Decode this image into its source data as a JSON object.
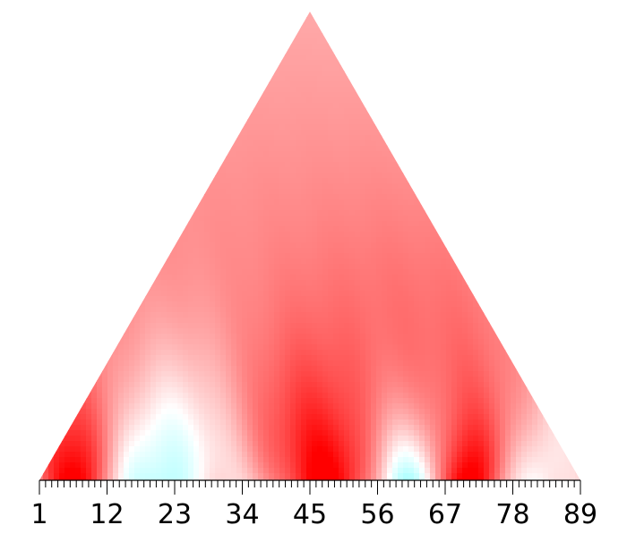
{
  "chart_data": {
    "type": "heatmap",
    "shape": "triangle",
    "title": "",
    "xlabel": "",
    "ylabel": "",
    "x_range": [
      1,
      89
    ],
    "x_ticks": [
      1,
      12,
      23,
      34,
      45,
      56,
      67,
      78,
      89
    ],
    "x_tick_labels": [
      "1",
      "12",
      "23",
      "34",
      "45",
      "56",
      "67",
      "78",
      "89"
    ],
    "minor_tick_step": 1,
    "grid": false,
    "legend": "none",
    "colors": {
      "positive": "#ff0000",
      "neutral": "#ffffff",
      "negative": "#00ffff",
      "background_tint": "#fdd6d8",
      "axis": "#000000"
    },
    "base_intensity": 0.18,
    "hotspots": [
      {
        "x": 6.5,
        "intensity": 0.95,
        "width": 5,
        "reach": 0.35
      },
      {
        "x": 20.5,
        "intensity": -0.45,
        "width": 7,
        "reach": 0.25
      },
      {
        "x": 47.5,
        "intensity": 0.9,
        "width": 8,
        "reach": 0.55
      },
      {
        "x": 61,
        "intensity": -0.55,
        "width": 5,
        "reach": 0.3
      },
      {
        "x": 70.5,
        "intensity": 0.95,
        "width": 5,
        "reach": 0.3
      },
      {
        "x": 82,
        "intensity": -0.2,
        "width": 3,
        "reach": 0.12
      }
    ]
  }
}
